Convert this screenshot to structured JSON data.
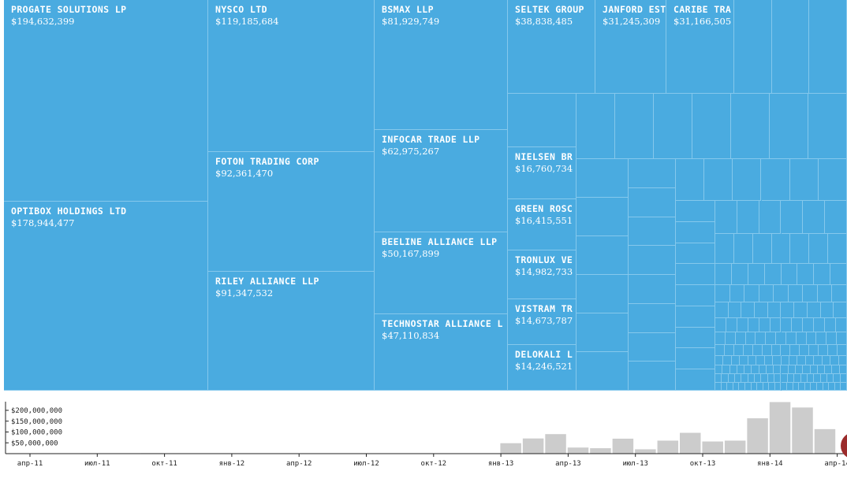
{
  "colors": {
    "tile": "#4aabe0",
    "tile_border": "#85c8ec",
    "bar": "#cccccc",
    "bar_border": "#ffffff",
    "axis": "#222222",
    "scroll_knob": "#9b2b2b"
  },
  "treemap": {
    "items": [
      {
        "name": "PROGATE SOLUTIONS LP",
        "value": "$194,632,399"
      },
      {
        "name": "OPTIBOX HOLDINGS LTD",
        "value": "$178,944,477"
      },
      {
        "name": "NYSCO LTD",
        "value": "$119,185,684"
      },
      {
        "name": "FOTON TRADING CORP",
        "value": "$92,361,470"
      },
      {
        "name": "RILEY ALLIANCE LLP",
        "value": "$91,347,532"
      },
      {
        "name": "BSMAX LLP",
        "value": "$81,929,749"
      },
      {
        "name": "INFOCAR TRADE LLP",
        "value": "$62,975,267"
      },
      {
        "name": "BEELINE ALLIANCE LLP",
        "value": "$50,167,899"
      },
      {
        "name": "TECHNOSTAR ALLIANCE L",
        "value": "$47,110,834"
      },
      {
        "name": "SELTEK GROUP",
        "value": "$38,838,485"
      },
      {
        "name": "JANFORD EST",
        "value": "$31,245,309"
      },
      {
        "name": "CARIBE TRA",
        "value": "$31,166,505"
      },
      {
        "name": "NIELSEN BR",
        "value": "$16,760,734"
      },
      {
        "name": "GREEN ROSC",
        "value": "$16,415,551"
      },
      {
        "name": "TRONLUX VE",
        "value": "$14,982,733"
      },
      {
        "name": "VISTRAM TR",
        "value": "$14,673,787"
      },
      {
        "name": "DELOKALI L",
        "value": "$14,246,521"
      }
    ]
  },
  "chart_data": {
    "type": "bar",
    "title": "",
    "xlabel": "",
    "ylabel": "",
    "y_ticks": [
      "$200,000,000",
      "$150,000,000",
      "$100,000,000",
      "$50,000,000"
    ],
    "y_tick_values": [
      200000000,
      150000000,
      100000000,
      50000000
    ],
    "ylim": [
      0,
      240000000
    ],
    "x_tick_labels": [
      "апр-11",
      "июл-11",
      "окт-11",
      "янв-12",
      "апр-12",
      "июл-12",
      "окт-12",
      "янв-13",
      "апр-13",
      "июл-13",
      "окт-13",
      "янв-14",
      "апр-14"
    ],
    "categories": [
      "апр-11",
      "май-11",
      "июн-11",
      "июл-11",
      "авг-11",
      "сен-11",
      "окт-11",
      "ноя-11",
      "дек-11",
      "янв-12",
      "фев-12",
      "мар-12",
      "апр-12",
      "май-12",
      "июн-12",
      "июл-12",
      "авг-12",
      "сен-12",
      "окт-12",
      "ноя-12",
      "дек-12",
      "янв-13",
      "фев-13",
      "мар-13",
      "апр-13",
      "май-13",
      "июн-13",
      "июл-13",
      "авг-13",
      "сен-13",
      "окт-13",
      "ноя-13",
      "дек-13",
      "янв-14",
      "фев-14",
      "мар-14",
      "апр-14"
    ],
    "values": [
      1000000,
      1000000,
      1000000,
      2500000,
      2500000,
      1000000,
      4000000,
      1000000,
      1000000,
      1000000,
      1000000,
      2500000,
      3500000,
      3500000,
      3000000,
      3500000,
      2000000,
      1000000,
      1000000,
      1000000,
      2000000,
      1000000,
      50000000,
      72000000,
      92000000,
      30000000,
      27000000,
      71000000,
      22000000,
      62000000,
      98000000,
      58000000,
      62000000,
      165000000,
      240000000,
      215000000,
      115000000
    ],
    "grid": false,
    "legend": "none"
  }
}
